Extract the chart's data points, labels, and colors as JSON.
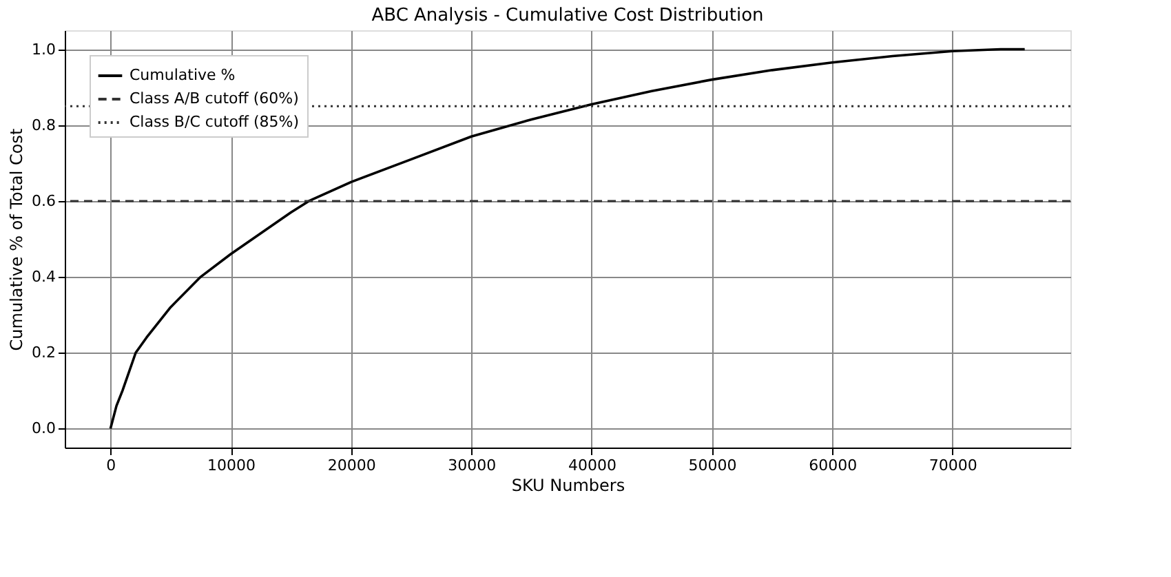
{
  "chart_data": {
    "type": "line",
    "title": "ABC Analysis - Cumulative Cost Distribution",
    "xlabel": "SKU Numbers",
    "ylabel": "Cumulative % of Total Cost",
    "x": [
      0,
      500,
      1000,
      2100,
      3000,
      5000,
      7500,
      10000,
      15000,
      16500,
      20000,
      25000,
      30000,
      35000,
      40000,
      45000,
      50000,
      55000,
      60000,
      65000,
      70000,
      74000,
      76000
    ],
    "series": [
      {
        "name": "Cumulative %",
        "color": "#000000",
        "line_style": "solid",
        "values": [
          0,
          0.06,
          0.1,
          0.2,
          0.24,
          0.32,
          0.4,
          0.46,
          0.57,
          0.6,
          0.65,
          0.71,
          0.77,
          0.815,
          0.855,
          0.89,
          0.92,
          0.945,
          0.965,
          0.982,
          0.995,
          1.0,
          1.0
        ]
      }
    ],
    "ref_lines": [
      {
        "axis": "y",
        "value": 0.6,
        "label": "Class A/B cutoff (60%)",
        "color": "#333333",
        "line_style": "dashed"
      },
      {
        "axis": "y",
        "value": 0.85,
        "label": "Class B/C cutoff (85%)",
        "color": "#333333",
        "line_style": "dotted"
      }
    ],
    "xlim": [
      -3800,
      79800
    ],
    "xticks": [
      0,
      10000,
      20000,
      30000,
      40000,
      50000,
      60000,
      70000
    ],
    "ylim": [
      -0.05,
      1.05
    ],
    "yticks": [
      {
        "value": 0,
        "label": "0.0"
      },
      0.2,
      0.4,
      0.6,
      0.8,
      {
        "value": 1,
        "label": "1.0"
      }
    ],
    "grid": true,
    "legend": "top left",
    "marker": "none"
  }
}
